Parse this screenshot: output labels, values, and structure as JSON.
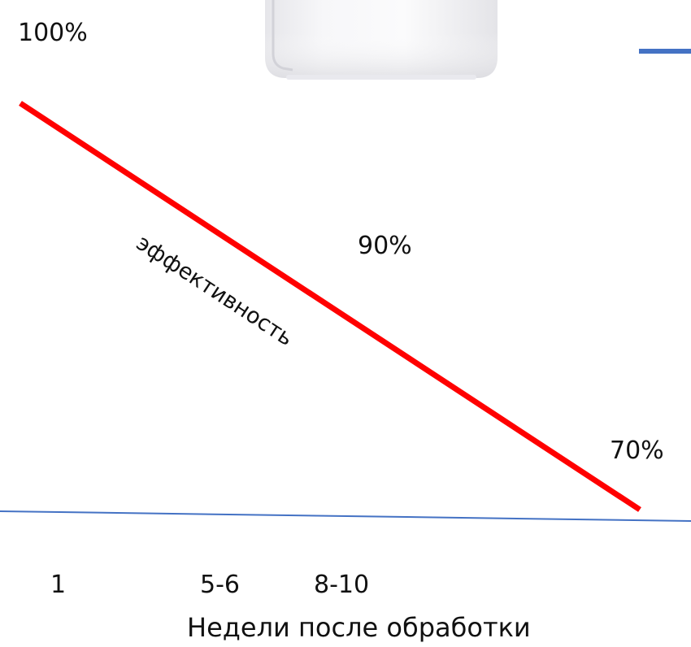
{
  "chart_data": {
    "type": "line",
    "xlabel": "Недели после обработки",
    "x_ticks": [
      "1",
      "5-6",
      "8-10"
    ],
    "line_label": "эффективность",
    "value_labels": [
      "100%",
      "90%",
      "70%"
    ],
    "colors": {
      "line": "#ff0000",
      "axis": "#4472c4",
      "legend_dash": "#4472c4",
      "text": "#111111"
    }
  }
}
